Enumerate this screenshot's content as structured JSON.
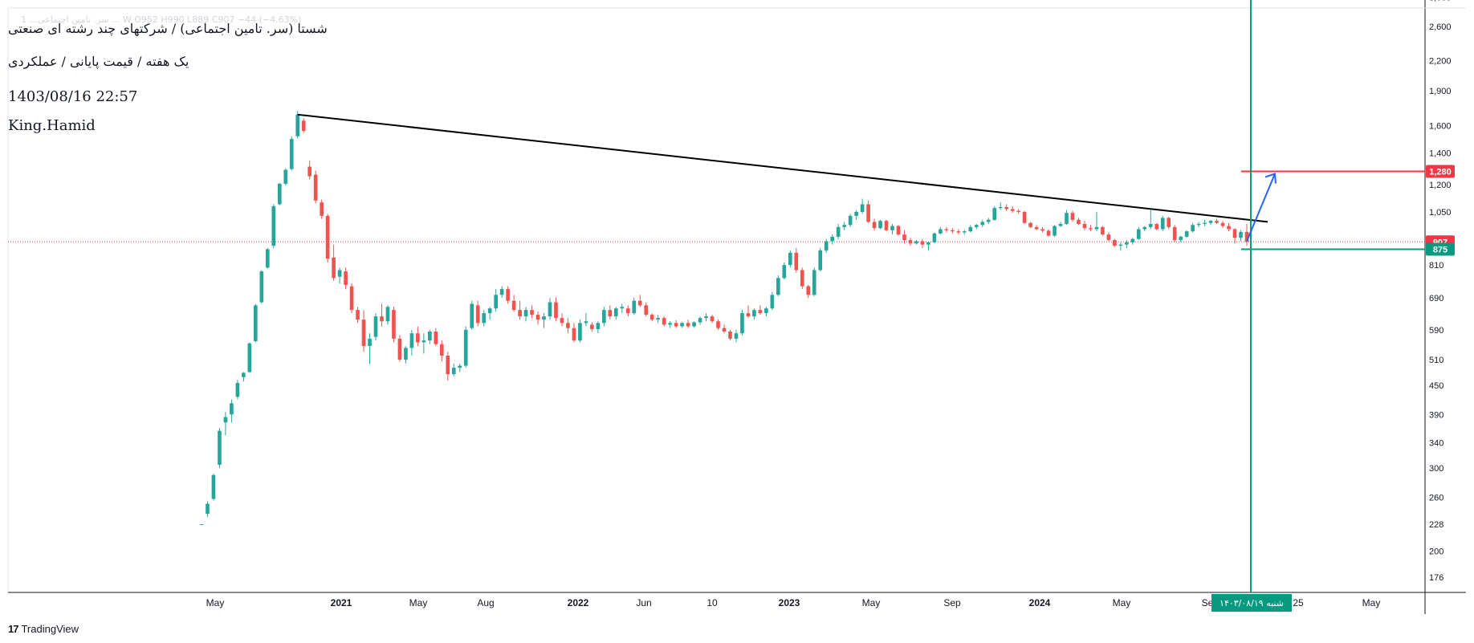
{
  "header": {
    "faint_line": "1 ...سر. تامین اجتماعی ... W  O952  H990  L889  C907  −44 (−4.63%)",
    "title": "شستا (سر. تامین اجتماعی) / شرکتهای چند رشته ای صنعتی",
    "subtitle": "یک هفته / قیمت پایانی / عملکردی",
    "timestamp": "1403/08/16 22:57",
    "author": "King.Hamid"
  },
  "branding": {
    "logo_mark": "17",
    "logo_text": "TradingView"
  },
  "colors": {
    "up": "#26a69a",
    "down": "#ef5350",
    "trendline": "#000000",
    "resistance": "#f23645",
    "support": "#089981",
    "arrow": "#2962ff",
    "vline": "#089981"
  },
  "chart_data": {
    "type": "candlestick",
    "title": "شستا (سر. تامین اجتماعی) / شرکتهای چند رشته ای صنعتی",
    "interval": "یک هفته",
    "y_scale": "log",
    "ylim": [
      155,
      3000
    ],
    "y_ticks": [
      "3,000",
      "2,600",
      "2,200",
      "1,900",
      "1,600",
      "1,400",
      "1,200",
      "1,050",
      "920",
      "810",
      "690",
      "590",
      "510",
      "450",
      "390",
      "340",
      "300",
      "260",
      "228",
      "200",
      "176"
    ],
    "x_ticks": [
      "May",
      "2021",
      "May",
      "Aug",
      "2022",
      "Jun",
      "10",
      "2023",
      "May",
      "Sep",
      "2024",
      "May",
      "Se",
      "25",
      "May"
    ],
    "price_labels": [
      {
        "label": "1,280",
        "value": 1280,
        "color": "#f23645"
      },
      {
        "label": "907",
        "value": 907,
        "color": "#f23645"
      },
      {
        "label": "875",
        "value": 875,
        "color": "#089981"
      }
    ],
    "current_price": 907,
    "last_bar": {
      "open": 952,
      "high": 990,
      "low": 889,
      "close": 907,
      "change": -44,
      "change_pct": "-4.63%"
    },
    "date_label": "شنبه ۱۴۰۳/۰۸/۱۹",
    "horizontal_lines": [
      {
        "name": "resistance",
        "value": 1280
      },
      {
        "name": "support",
        "value": 875
      },
      {
        "name": "last-price",
        "value": 907
      }
    ],
    "trendline": {
      "from": {
        "date": "2020-08",
        "value": 1690
      },
      "to": {
        "date": "2024-11",
        "value": 1000
      }
    },
    "arrow": {
      "from_value": 910,
      "to_value": 1270
    },
    "candles": [
      [
        228,
        228,
        228,
        228
      ],
      [
        240,
        255,
        236,
        252
      ],
      [
        258,
        292,
        256,
        290
      ],
      [
        305,
        365,
        300,
        360
      ],
      [
        375,
        395,
        352,
        385
      ],
      [
        390,
        420,
        375,
        412
      ],
      [
        425,
        462,
        420,
        455
      ],
      [
        468,
        480,
        458,
        478
      ],
      [
        480,
        555,
        478,
        552
      ],
      [
        558,
        670,
        555,
        665
      ],
      [
        675,
        790,
        670,
        785
      ],
      [
        800,
        880,
        795,
        875
      ],
      [
        890,
        1090,
        880,
        1080
      ],
      [
        1090,
        1210,
        1085,
        1205
      ],
      [
        1205,
        1300,
        1195,
        1290
      ],
      [
        1295,
        1520,
        1285,
        1500
      ],
      [
        1520,
        1720,
        1505,
        1690
      ],
      [
        1640,
        1660,
        1545,
        1560
      ],
      [
        1310,
        1350,
        1230,
        1250
      ],
      [
        1260,
        1285,
        1095,
        1110
      ],
      [
        1100,
        1115,
        1015,
        1030
      ],
      [
        1030,
        1040,
        820,
        835
      ],
      [
        840,
        895,
        750,
        760
      ],
      [
        765,
        800,
        740,
        790
      ],
      [
        785,
        800,
        720,
        735
      ],
      [
        730,
        740,
        640,
        650
      ],
      [
        650,
        660,
        610,
        620
      ],
      [
        620,
        650,
        530,
        545
      ],
      [
        545,
        580,
        500,
        565
      ],
      [
        570,
        640,
        560,
        630
      ],
      [
        630,
        670,
        600,
        615
      ],
      [
        615,
        665,
        605,
        660
      ],
      [
        650,
        660,
        555,
        565
      ],
      [
        565,
        575,
        505,
        510
      ],
      [
        510,
        545,
        500,
        540
      ],
      [
        540,
        590,
        520,
        580
      ],
      [
        580,
        600,
        545,
        555
      ],
      [
        555,
        580,
        525,
        560
      ],
      [
        560,
        590,
        550,
        585
      ],
      [
        585,
        595,
        545,
        550
      ],
      [
        550,
        560,
        505,
        520
      ],
      [
        520,
        530,
        460,
        475
      ],
      [
        475,
        500,
        470,
        490
      ],
      [
        490,
        500,
        480,
        495
      ],
      [
        495,
        600,
        490,
        590
      ],
      [
        595,
        680,
        590,
        670
      ],
      [
        665,
        680,
        600,
        610
      ],
      [
        610,
        650,
        600,
        640
      ],
      [
        640,
        660,
        620,
        655
      ],
      [
        655,
        720,
        645,
        700
      ],
      [
        700,
        730,
        690,
        720
      ],
      [
        720,
        730,
        670,
        680
      ],
      [
        680,
        700,
        645,
        650
      ],
      [
        650,
        680,
        620,
        630
      ],
      [
        630,
        660,
        615,
        650
      ],
      [
        650,
        665,
        625,
        635
      ],
      [
        635,
        645,
        605,
        620
      ],
      [
        620,
        640,
        595,
        630
      ],
      [
        630,
        690,
        620,
        675
      ],
      [
        675,
        690,
        615,
        625
      ],
      [
        625,
        640,
        600,
        610
      ],
      [
        610,
        625,
        580,
        595
      ],
      [
        595,
        610,
        555,
        560
      ],
      [
        560,
        620,
        555,
        610
      ],
      [
        610,
        640,
        600,
        615
      ],
      [
        605,
        612,
        585,
        592
      ],
      [
        592,
        615,
        580,
        610
      ],
      [
        610,
        660,
        600,
        650
      ],
      [
        650,
        665,
        620,
        630
      ],
      [
        630,
        660,
        620,
        655
      ],
      [
        655,
        670,
        640,
        660
      ],
      [
        655,
        665,
        630,
        640
      ],
      [
        640,
        690,
        635,
        680
      ],
      [
        680,
        700,
        660,
        665
      ],
      [
        665,
        675,
        630,
        635
      ],
      [
        635,
        640,
        615,
        620
      ],
      [
        620,
        635,
        610,
        625
      ],
      [
        625,
        630,
        600,
        605
      ],
      [
        605,
        615,
        595,
        610
      ],
      [
        610,
        618,
        595,
        600
      ],
      [
        600,
        612,
        595,
        610
      ],
      [
        610,
        620,
        595,
        600
      ],
      [
        600,
        615,
        597,
        612
      ],
      [
        612,
        630,
        605,
        625
      ],
      [
        625,
        640,
        615,
        630
      ],
      [
        630,
        635,
        610,
        615
      ],
      [
        615,
        620,
        590,
        595
      ],
      [
        595,
        605,
        580,
        585
      ],
      [
        585,
        590,
        560,
        565
      ],
      [
        565,
        590,
        555,
        580
      ],
      [
        580,
        650,
        575,
        640
      ],
      [
        640,
        665,
        625,
        630
      ],
      [
        630,
        655,
        620,
        650
      ],
      [
        650,
        665,
        635,
        640
      ],
      [
        640,
        660,
        630,
        655
      ],
      [
        655,
        710,
        650,
        700
      ],
      [
        700,
        770,
        695,
        760
      ],
      [
        760,
        820,
        755,
        810
      ],
      [
        810,
        870,
        800,
        860
      ],
      [
        860,
        880,
        780,
        790
      ],
      [
        790,
        800,
        720,
        730
      ],
      [
        730,
        735,
        690,
        700
      ],
      [
        700,
        800,
        695,
        790
      ],
      [
        790,
        880,
        785,
        870
      ],
      [
        870,
        920,
        860,
        910
      ],
      [
        910,
        940,
        895,
        930
      ],
      [
        930,
        990,
        920,
        975
      ],
      [
        975,
        1000,
        960,
        985
      ],
      [
        985,
        1040,
        975,
        1030
      ],
      [
        1030,
        1060,
        1010,
        1050
      ],
      [
        1050,
        1120,
        1040,
        1090
      ],
      [
        1090,
        1110,
        995,
        1000
      ],
      [
        1000,
        1015,
        960,
        970
      ],
      [
        970,
        1010,
        965,
        1005
      ],
      [
        1005,
        1010,
        955,
        960
      ],
      [
        960,
        990,
        940,
        980
      ],
      [
        980,
        985,
        935,
        940
      ],
      [
        940,
        960,
        900,
        915
      ],
      [
        915,
        925,
        890,
        900
      ],
      [
        900,
        915,
        895,
        910
      ],
      [
        910,
        920,
        880,
        895
      ],
      [
        895,
        910,
        870,
        905
      ],
      [
        905,
        950,
        900,
        945
      ],
      [
        945,
        975,
        940,
        965
      ],
      [
        965,
        975,
        950,
        960
      ],
      [
        960,
        970,
        945,
        955
      ],
      [
        955,
        965,
        940,
        950
      ],
      [
        950,
        960,
        940,
        955
      ],
      [
        955,
        985,
        950,
        975
      ],
      [
        975,
        990,
        965,
        985
      ],
      [
        985,
        1010,
        975,
        1000
      ],
      [
        1000,
        1020,
        990,
        1010
      ],
      [
        1010,
        1080,
        1005,
        1070
      ],
      [
        1070,
        1100,
        1060,
        1075
      ],
      [
        1075,
        1090,
        1055,
        1065
      ],
      [
        1065,
        1080,
        1045,
        1055
      ],
      [
        1055,
        1065,
        1040,
        1050
      ],
      [
        1050,
        1055,
        990,
        995
      ],
      [
        995,
        1000,
        970,
        975
      ],
      [
        975,
        985,
        960,
        965
      ],
      [
        965,
        975,
        950,
        958
      ],
      [
        958,
        965,
        930,
        935
      ],
      [
        935,
        985,
        930,
        980
      ],
      [
        980,
        1000,
        975,
        990
      ],
      [
        990,
        1060,
        985,
        1045
      ],
      [
        1045,
        1055,
        1000,
        1010
      ],
      [
        1010,
        1020,
        985,
        990
      ],
      [
        990,
        1005,
        960,
        970
      ],
      [
        970,
        985,
        955,
        965
      ],
      [
        965,
        1050,
        955,
        975
      ],
      [
        975,
        980,
        935,
        940
      ],
      [
        940,
        950,
        910,
        915
      ],
      [
        915,
        920,
        885,
        890
      ],
      [
        890,
        905,
        870,
        895
      ],
      [
        895,
        915,
        880,
        905
      ],
      [
        905,
        925,
        895,
        920
      ],
      [
        920,
        975,
        915,
        965
      ],
      [
        965,
        980,
        955,
        975
      ],
      [
        975,
        1060,
        965,
        990
      ],
      [
        990,
        995,
        960,
        965
      ],
      [
        965,
        1030,
        955,
        1020
      ],
      [
        1020,
        1025,
        965,
        975
      ],
      [
        975,
        985,
        905,
        915
      ],
      [
        915,
        935,
        905,
        930
      ],
      [
        930,
        960,
        925,
        955
      ],
      [
        955,
        995,
        950,
        985
      ],
      [
        985,
        1000,
        975,
        990
      ],
      [
        990,
        1010,
        980,
        995
      ],
      [
        995,
        1010,
        985,
        1005
      ],
      [
        1005,
        1015,
        990,
        995
      ],
      [
        995,
        1005,
        970,
        980
      ],
      [
        980,
        995,
        955,
        965
      ],
      [
        965,
        970,
        900,
        925
      ],
      [
        925,
        960,
        910,
        952
      ],
      [
        952,
        990,
        889,
        907
      ]
    ]
  }
}
